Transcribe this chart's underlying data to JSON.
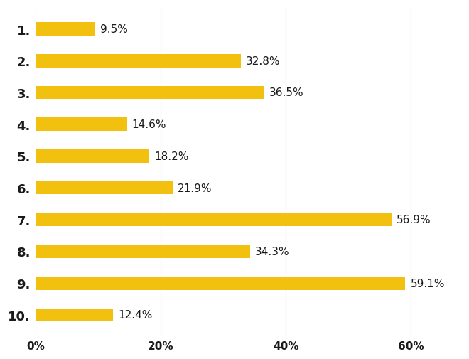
{
  "categories": [
    "1.",
    "2.",
    "3.",
    "4.",
    "5.",
    "6.",
    "7.",
    "8.",
    "9.",
    "10."
  ],
  "values": [
    9.5,
    32.8,
    36.5,
    14.6,
    18.2,
    21.9,
    56.9,
    34.3,
    59.1,
    12.4
  ],
  "labels": [
    "9.5%",
    "32.8%",
    "36.5%",
    "14.6%",
    "18.2%",
    "21.9%",
    "56.9%",
    "34.3%",
    "59.1%",
    "12.4%"
  ],
  "bar_color": "#F2C10F",
  "background_color": "#ffffff",
  "xlim": [
    0,
    68
  ],
  "xticks": [
    0,
    20,
    40,
    60
  ],
  "xticklabels": [
    "0%",
    "20%",
    "40%",
    "60%"
  ],
  "grid_color": "#cccccc",
  "label_fontsize": 11,
  "tick_fontsize": 11,
  "category_fontsize": 13,
  "bar_height": 0.42
}
